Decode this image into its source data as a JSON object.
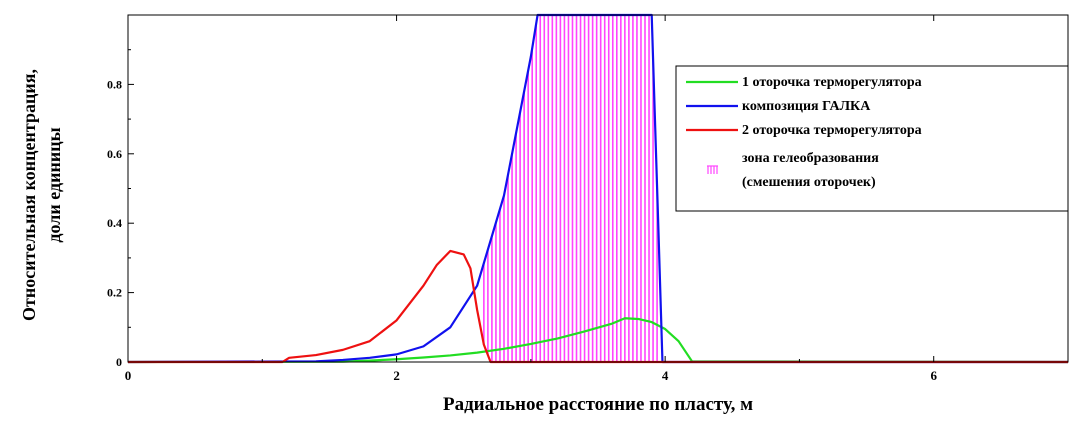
{
  "chart_data": {
    "type": "line",
    "title": "",
    "xlabel": "Радиальное расстояние по пласту, м",
    "ylabel_lines": [
      "Относительная концентрация,",
      "доли единицы"
    ],
    "xlim": [
      0,
      7
    ],
    "ylim": [
      0,
      1
    ],
    "x_ticks": [
      0,
      2,
      4,
      6
    ],
    "x_tick_labels": [
      "0",
      "2",
      "4",
      "6"
    ],
    "y_ticks": [
      0,
      0.2,
      0.4,
      0.6,
      0.8
    ],
    "y_tick_labels": [
      "0",
      "0.2",
      "0.4",
      "0.6",
      "0.8"
    ],
    "grid": false,
    "legend_position": "top-right",
    "series": [
      {
        "name": "1 оторочка терморегулятора",
        "color": "#22dd22",
        "x": [
          0,
          1.6,
          1.8,
          2.0,
          2.2,
          2.4,
          2.6,
          2.8,
          3.0,
          3.2,
          3.4,
          3.6,
          3.7,
          3.8,
          3.9,
          4.0,
          4.1,
          4.2,
          7.0
        ],
        "y": [
          0,
          0.001,
          0.004,
          0.008,
          0.013,
          0.019,
          0.027,
          0.038,
          0.052,
          0.068,
          0.088,
          0.11,
          0.126,
          0.124,
          0.115,
          0.095,
          0.06,
          0.002,
          0
        ]
      },
      {
        "name": "композиция ГАЛКА",
        "color": "#1111ee",
        "x": [
          0,
          1.4,
          1.6,
          1.8,
          2.0,
          2.2,
          2.4,
          2.6,
          2.8,
          3.0,
          3.05,
          3.9,
          3.92,
          3.95,
          3.98,
          7.0
        ],
        "y": [
          0,
          0.002,
          0.006,
          0.012,
          0.022,
          0.045,
          0.1,
          0.22,
          0.48,
          0.88,
          1.0,
          1.0,
          0.75,
          0.38,
          0.0,
          0
        ]
      },
      {
        "name": "2 оторочка терморегулятора",
        "color": "#ee1111",
        "x": [
          0,
          1.15,
          1.2,
          1.4,
          1.6,
          1.8,
          2.0,
          2.2,
          2.3,
          2.4,
          2.5,
          2.55,
          2.6,
          2.65,
          2.7,
          7.0
        ],
        "y": [
          0,
          0.0,
          0.012,
          0.02,
          0.035,
          0.06,
          0.12,
          0.22,
          0.28,
          0.32,
          0.31,
          0.27,
          0.15,
          0.05,
          0.0,
          0
        ]
      }
    ],
    "gel_zone": {
      "name": "зона гелеобразования (смешения оторочек)",
      "legend_lines": [
        "зона гелеобразования",
        "(смешения оторочек)"
      ],
      "color": "#ff44ff",
      "x_start": 2.65,
      "x_end": 3.95,
      "step": 0.03
    }
  }
}
